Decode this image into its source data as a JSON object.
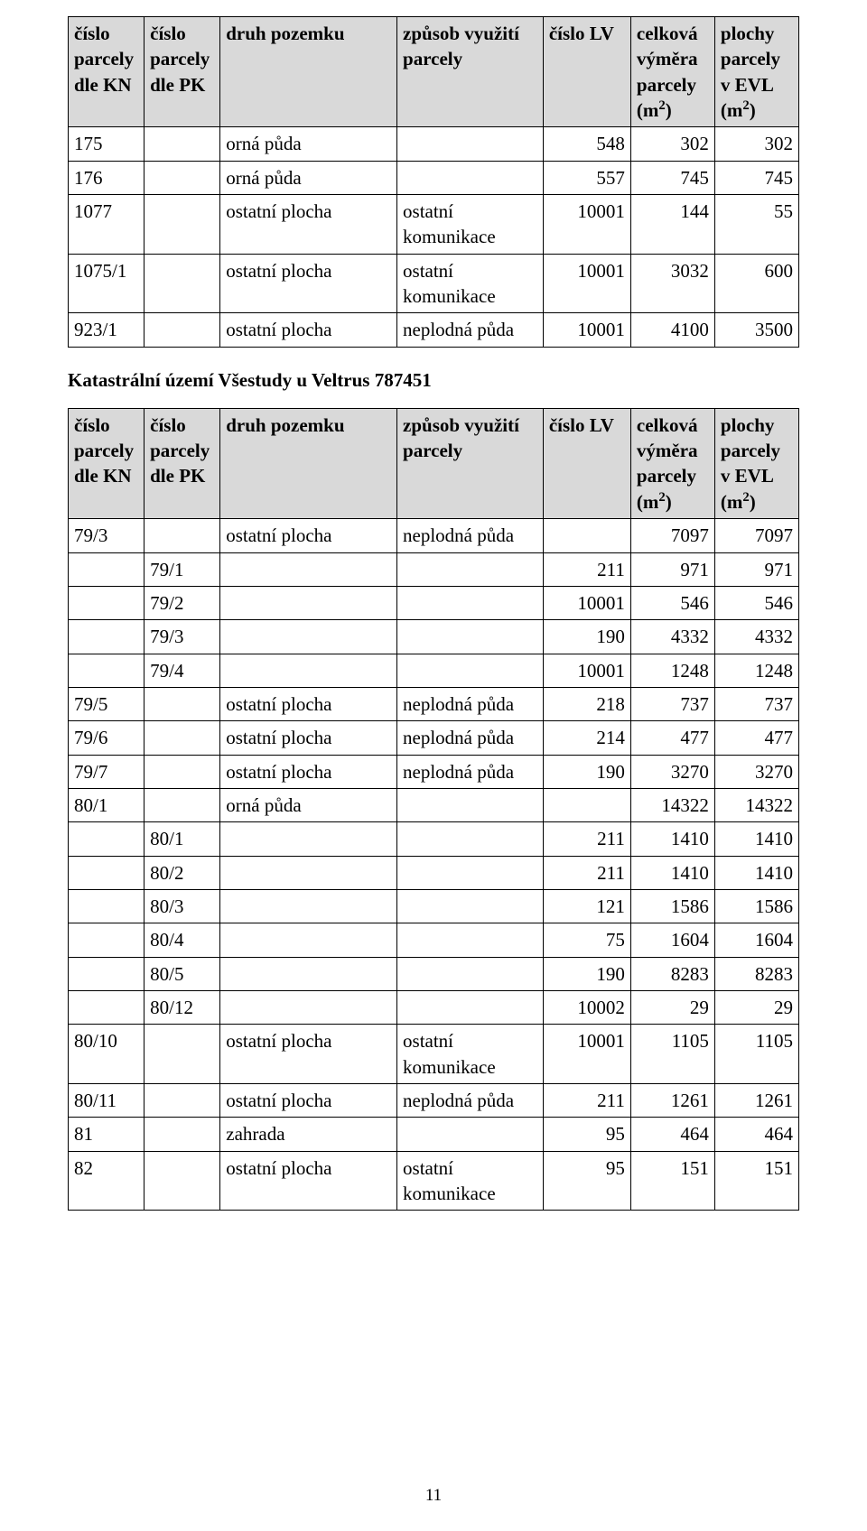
{
  "headers": {
    "kn": "číslo\nparcely\ndle KN",
    "pk": "číslo\nparcely\ndle PK",
    "druh": "druh pozemku",
    "vyuz": "způsob využití\nparcely",
    "lv": "číslo LV",
    "vym": "celková\nvýměra\nparcely\n(m²)",
    "evl": "plochy\nparcely\nv EVL\n(m²)"
  },
  "table1": {
    "rows": [
      {
        "kn": "175",
        "pk": "",
        "druh": "orná půda",
        "vyuz": "",
        "lv": "548",
        "vym": "302",
        "evl": "302"
      },
      {
        "kn": "176",
        "pk": "",
        "druh": "orná půda",
        "vyuz": "",
        "lv": "557",
        "vym": "745",
        "evl": "745"
      },
      {
        "kn": "1077",
        "pk": "",
        "druh": "ostatní plocha",
        "vyuz": "ostatní\nkomunikace",
        "lv": "10001",
        "vym": "144",
        "evl": "55"
      },
      {
        "kn": "1075/1",
        "pk": "",
        "druh": "ostatní plocha",
        "vyuz": "ostatní\nkomunikace",
        "lv": "10001",
        "vym": "3032",
        "evl": "600"
      },
      {
        "kn": "923/1",
        "pk": "",
        "druh": "ostatní plocha",
        "vyuz": "neplodná půda",
        "lv": "10001",
        "vym": "4100",
        "evl": "3500"
      }
    ]
  },
  "section_title": "Katastrální území Všestudy u Veltrus 787451",
  "table2": {
    "rows": [
      {
        "kn": "79/3",
        "pk": "",
        "druh": "ostatní plocha",
        "vyuz": "neplodná půda",
        "lv": "",
        "vym": "7097",
        "evl": "7097"
      },
      {
        "kn": "",
        "pk": "79/1",
        "druh": "",
        "vyuz": "",
        "lv": "211",
        "vym": "971",
        "evl": "971"
      },
      {
        "kn": "",
        "pk": "79/2",
        "druh": "",
        "vyuz": "",
        "lv": "10001",
        "vym": "546",
        "evl": "546"
      },
      {
        "kn": "",
        "pk": "79/3",
        "druh": "",
        "vyuz": "",
        "lv": "190",
        "vym": "4332",
        "evl": "4332"
      },
      {
        "kn": "",
        "pk": "79/4",
        "druh": "",
        "vyuz": "",
        "lv": "10001",
        "vym": "1248",
        "evl": "1248"
      },
      {
        "kn": "79/5",
        "pk": "",
        "druh": "ostatní plocha",
        "vyuz": "neplodná půda",
        "lv": "218",
        "vym": "737",
        "evl": "737"
      },
      {
        "kn": "79/6",
        "pk": "",
        "druh": "ostatní plocha",
        "vyuz": "neplodná půda",
        "lv": "214",
        "vym": "477",
        "evl": "477"
      },
      {
        "kn": "79/7",
        "pk": "",
        "druh": "ostatní plocha",
        "vyuz": "neplodná půda",
        "lv": "190",
        "vym": "3270",
        "evl": "3270"
      },
      {
        "kn": "80/1",
        "pk": "",
        "druh": "orná půda",
        "vyuz": "",
        "lv": "",
        "vym": "14322",
        "evl": "14322"
      },
      {
        "kn": "",
        "pk": "80/1",
        "druh": "",
        "vyuz": "",
        "lv": "211",
        "vym": "1410",
        "evl": "1410"
      },
      {
        "kn": "",
        "pk": "80/2",
        "druh": "",
        "vyuz": "",
        "lv": "211",
        "vym": "1410",
        "evl": "1410"
      },
      {
        "kn": "",
        "pk": "80/3",
        "druh": "",
        "vyuz": "",
        "lv": "121",
        "vym": "1586",
        "evl": "1586"
      },
      {
        "kn": "",
        "pk": "80/4",
        "druh": "",
        "vyuz": "",
        "lv": "75",
        "vym": "1604",
        "evl": "1604"
      },
      {
        "kn": "",
        "pk": "80/5",
        "druh": "",
        "vyuz": "",
        "lv": "190",
        "vym": "8283",
        "evl": "8283"
      },
      {
        "kn": "",
        "pk": "80/12",
        "druh": "",
        "vyuz": "",
        "lv": "10002",
        "vym": "29",
        "evl": "29"
      },
      {
        "kn": "80/10",
        "pk": "",
        "druh": "ostatní plocha",
        "vyuz": "ostatní\nkomunikace",
        "lv": "10001",
        "vym": "1105",
        "evl": "1105"
      },
      {
        "kn": "80/11",
        "pk": "",
        "druh": "ostatní plocha",
        "vyuz": "neplodná půda",
        "lv": "211",
        "vym": "1261",
        "evl": "1261"
      },
      {
        "kn": "81",
        "pk": "",
        "druh": "zahrada",
        "vyuz": "",
        "lv": "95",
        "vym": "464",
        "evl": "464"
      },
      {
        "kn": "82",
        "pk": "",
        "druh": "ostatní plocha",
        "vyuz": "ostatní\nkomunikace",
        "lv": "95",
        "vym": "151",
        "evl": "151"
      }
    ]
  },
  "page_number": "11"
}
